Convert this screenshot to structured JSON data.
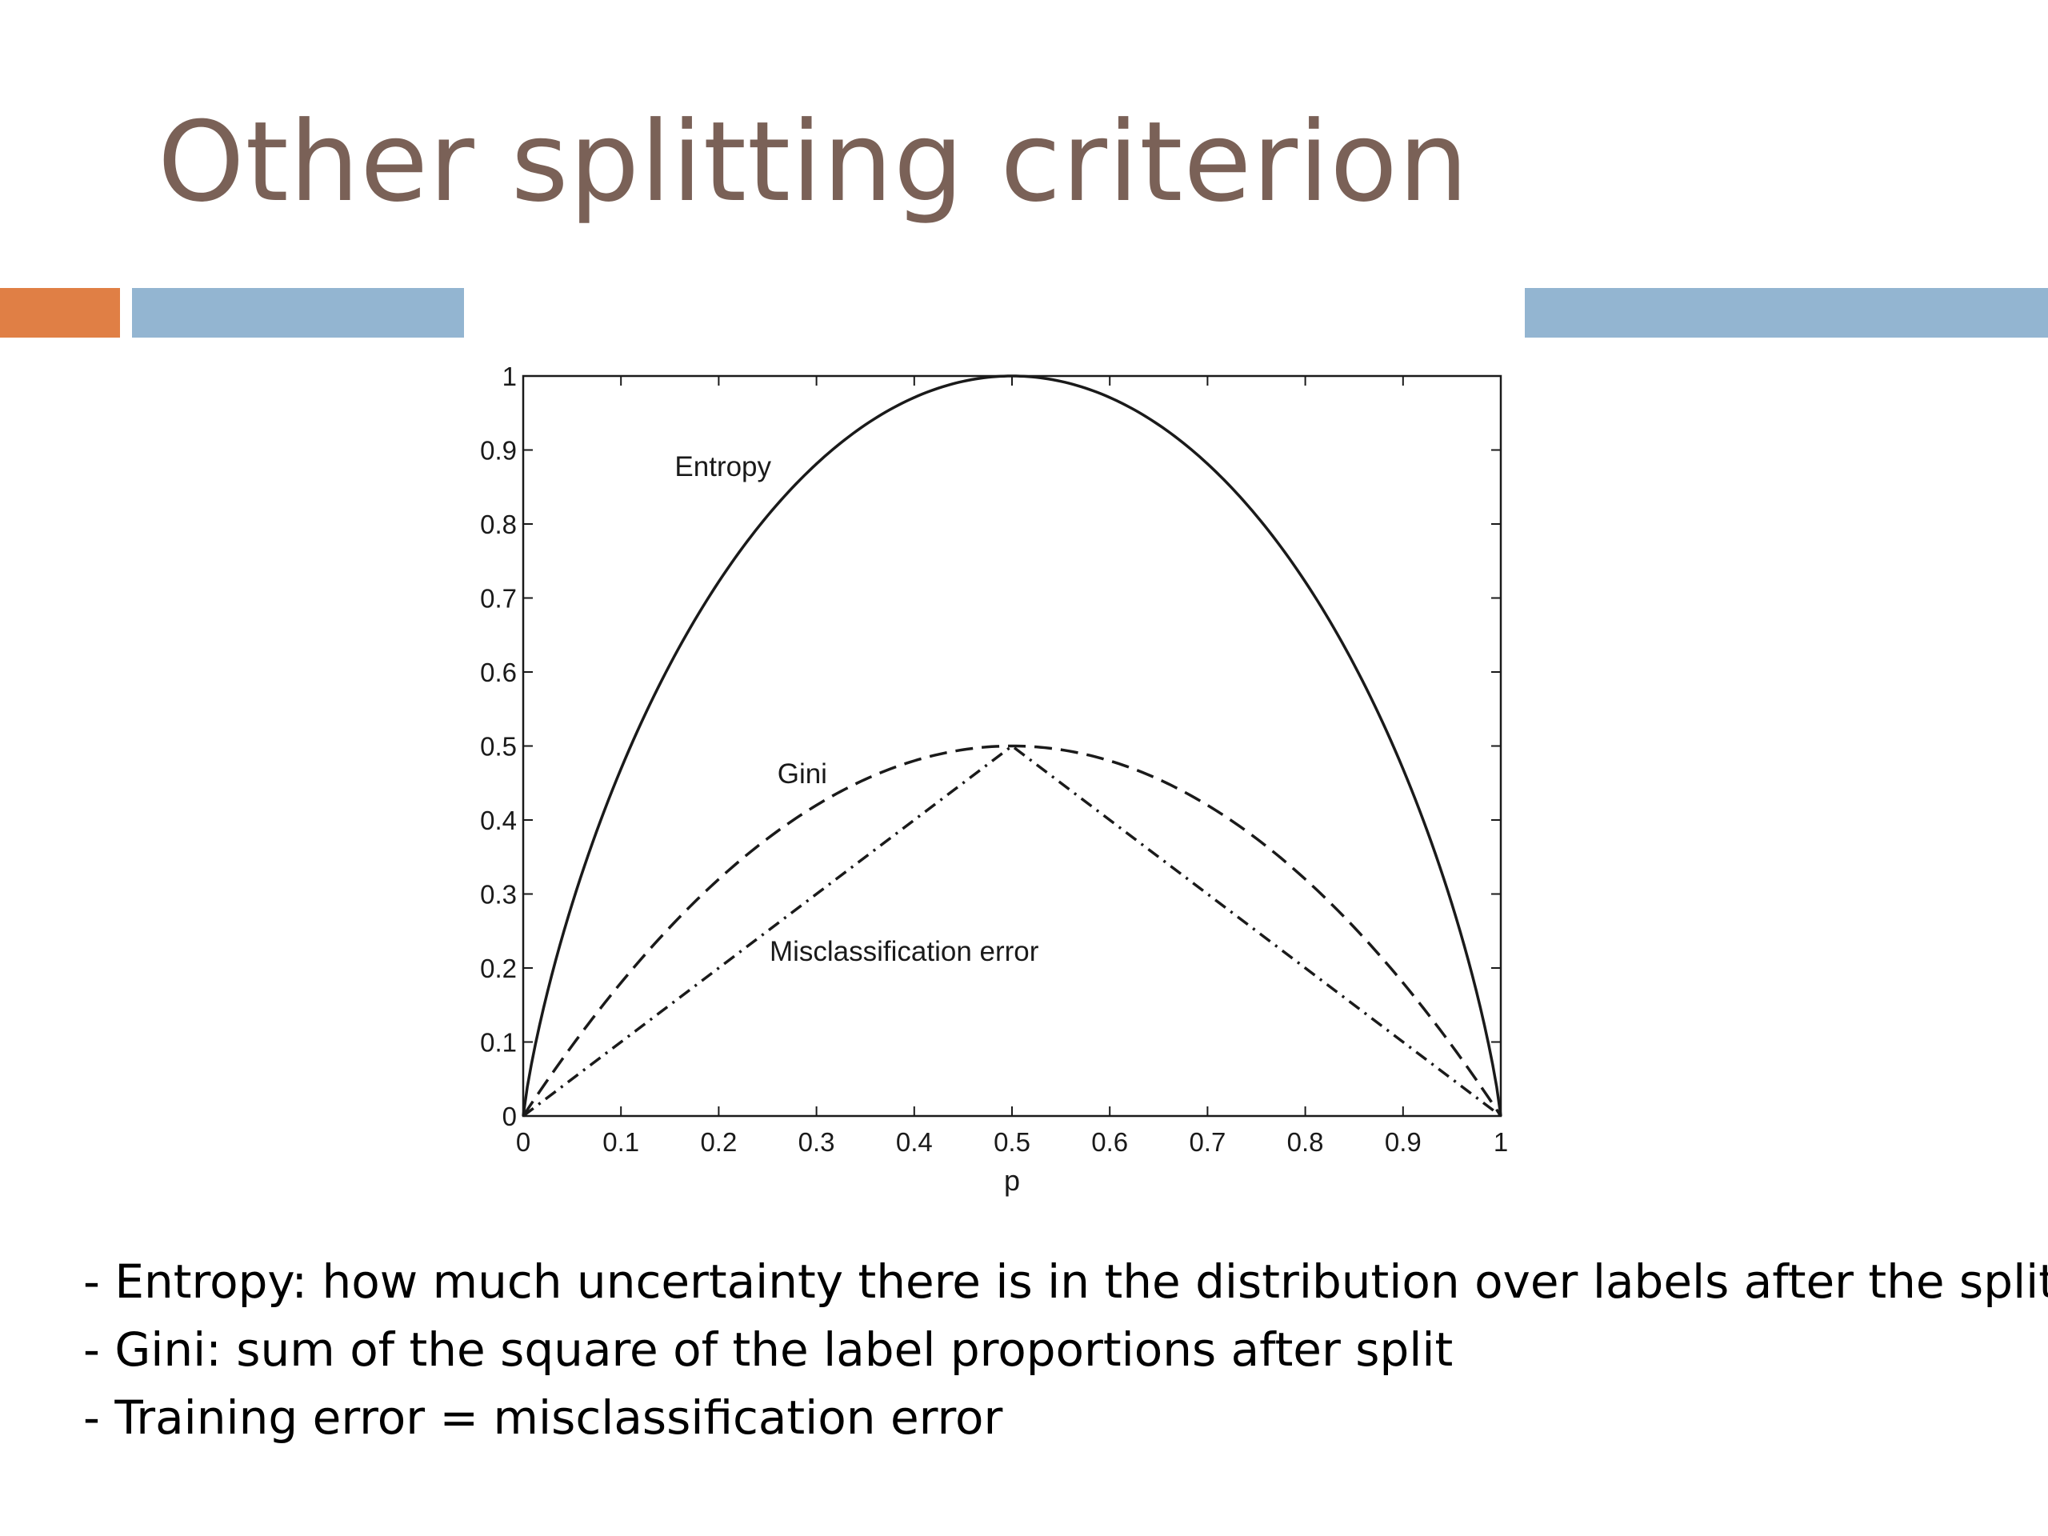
{
  "slide": {
    "title": "Other splitting criterion",
    "colors": {
      "title": "#7a6157",
      "accent_orange": "#e07f45",
      "accent_blue": "#93b5d1",
      "curve": "#1a1a1a"
    }
  },
  "chart_data": {
    "type": "line",
    "title": "",
    "xlabel": "p",
    "ylabel": "",
    "xlim": [
      0,
      1
    ],
    "ylim": [
      0,
      1
    ],
    "x_ticks": [
      "0",
      "0.1",
      "0.2",
      "0.3",
      "0.4",
      "0.5",
      "0.6",
      "0.7",
      "0.8",
      "0.9",
      "1"
    ],
    "y_ticks": [
      "0",
      "0.1",
      "0.2",
      "0.3",
      "0.4",
      "0.5",
      "0.6",
      "0.7",
      "0.8",
      "0.9",
      "1"
    ],
    "x": [
      0,
      0.02,
      0.05,
      0.1,
      0.15,
      0.2,
      0.25,
      0.3,
      0.35,
      0.4,
      0.45,
      0.5,
      0.55,
      0.6,
      0.65,
      0.7,
      0.75,
      0.8,
      0.85,
      0.9,
      0.95,
      0.98,
      1
    ],
    "series": [
      {
        "name": "Entropy",
        "line_style": "solid",
        "values": [
          0,
          0.141,
          0.286,
          0.469,
          0.61,
          0.722,
          0.811,
          0.881,
          0.934,
          0.971,
          0.993,
          1,
          0.993,
          0.971,
          0.934,
          0.881,
          0.811,
          0.722,
          0.61,
          0.469,
          0.286,
          0.141,
          0
        ]
      },
      {
        "name": "Gini",
        "line_style": "dashed",
        "values": [
          0,
          0.039,
          0.095,
          0.18,
          0.255,
          0.32,
          0.375,
          0.42,
          0.455,
          0.48,
          0.495,
          0.5,
          0.495,
          0.48,
          0.455,
          0.42,
          0.375,
          0.32,
          0.255,
          0.18,
          0.095,
          0.039,
          0
        ]
      },
      {
        "name": "Misclassification error",
        "line_style": "dash-dot",
        "values": [
          0,
          0.02,
          0.05,
          0.1,
          0.15,
          0.2,
          0.25,
          0.3,
          0.35,
          0.4,
          0.45,
          0.5,
          0.45,
          0.4,
          0.35,
          0.3,
          0.25,
          0.2,
          0.15,
          0.1,
          0.05,
          0.02,
          0
        ]
      }
    ],
    "annotations": [
      {
        "text": "Entropy",
        "x": 0.155,
        "y": 0.865
      },
      {
        "text": "Gini",
        "x": 0.26,
        "y": 0.45
      },
      {
        "text": "Misclassification error",
        "x": 0.252,
        "y": 0.21
      }
    ],
    "grid": false,
    "legend": "none"
  },
  "bullets": [
    "- Entropy: how much uncertainty there is in the distribution over labels after the split",
    "- Gini: sum of the square of the label proportions after split",
    "- Training error = misclassification error"
  ]
}
